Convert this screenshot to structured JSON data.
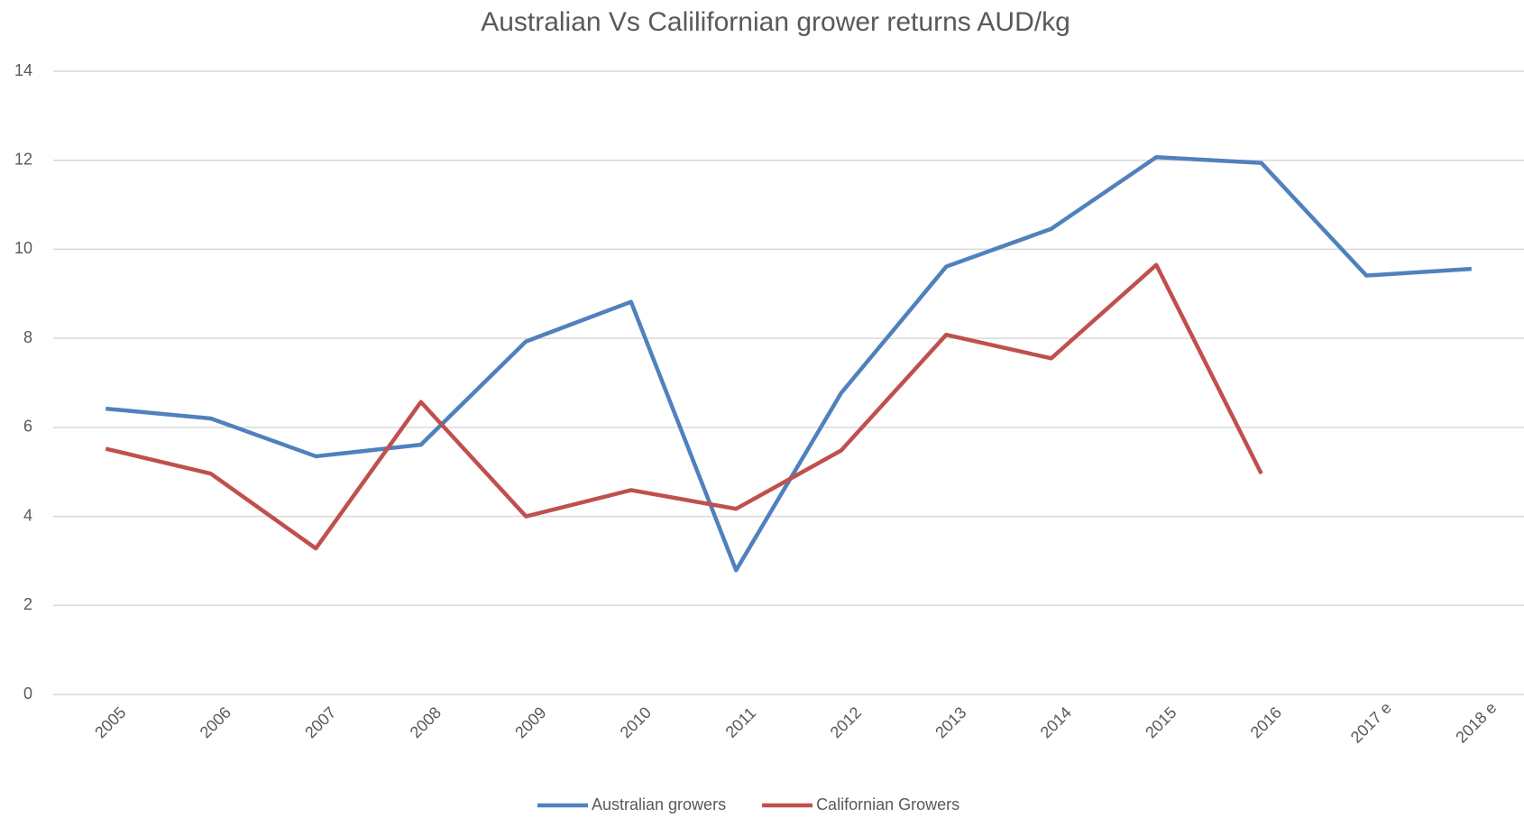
{
  "chart_data": {
    "type": "line",
    "title": "Australian Vs Calilifornian grower returns AUD/kg",
    "categories": [
      "2005",
      "2006",
      "2007",
      "2008",
      "2009",
      "2010",
      "2011",
      "2012",
      "2013",
      "2014",
      "2015",
      "2016",
      "2017 e",
      "2018 e"
    ],
    "series": [
      {
        "name": "Australian growers",
        "color": "#4f81bd",
        "values": [
          6.42,
          6.2,
          5.35,
          5.61,
          7.93,
          8.82,
          2.79,
          6.77,
          9.61,
          10.46,
          12.07,
          11.94,
          9.41,
          9.56
        ]
      },
      {
        "name": "Californian Growers",
        "color": "#c0504d",
        "values": [
          5.52,
          4.96,
          3.28,
          6.57,
          4.0,
          4.59,
          4.17,
          5.48,
          8.08,
          7.55,
          9.65,
          4.96,
          null,
          null
        ]
      }
    ],
    "ylim": [
      0,
      14
    ],
    "yticks": [
      0,
      2,
      4,
      6,
      8,
      10,
      12,
      14
    ],
    "grid": true,
    "legend": "bottom"
  }
}
